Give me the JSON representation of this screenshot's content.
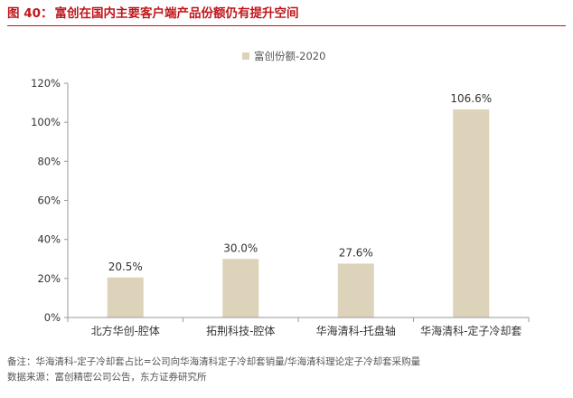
{
  "figure": {
    "number": "图 40：",
    "title": "富创在国内主要客户端产品份额仍有提升空间"
  },
  "chart_data": {
    "type": "bar",
    "categories": [
      "北方华创-腔体",
      "拓荆科技-腔体",
      "华海清科-托盘轴",
      "华海清科-定子冷却套"
    ],
    "series": [
      {
        "name": "富创份额-2020",
        "values": [
          20.5,
          30.0,
          27.6,
          106.6
        ],
        "labels": [
          "20.5%",
          "30.0%",
          "27.6%",
          "106.6%"
        ]
      }
    ],
    "y_ticks": [
      "0%",
      "20%",
      "40%",
      "60%",
      "80%",
      "100%",
      "120%"
    ],
    "ylim": [
      0,
      120
    ],
    "grid": false,
    "legend_position": "top-center",
    "colors": {
      "bar": "#ddd3ba",
      "axis": "#999999",
      "text": "#333333"
    }
  },
  "footer": {
    "note": "备注：华海清科-定子冷却套占比=公司向华海清科定子冷却套销量/华海清科理论定子冷却套采购量",
    "source": "数据来源：富创精密公司公告，东方证券研究所"
  }
}
